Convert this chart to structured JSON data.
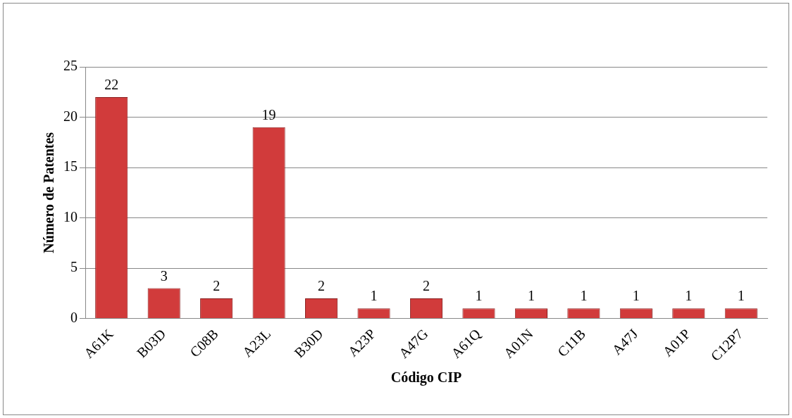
{
  "chart_data": {
    "type": "bar",
    "xlabel": "Código CIP",
    "ylabel": "Número de Patentes",
    "categories": [
      "A61K",
      "B03D",
      "C08B",
      "A23L",
      "B30D",
      "A23P",
      "A47G",
      "A61Q",
      "A01N",
      "C11B",
      "A47J",
      "A01P",
      "C12P7"
    ],
    "values": [
      22,
      3,
      2,
      19,
      2,
      1,
      2,
      1,
      1,
      1,
      1,
      1,
      1
    ],
    "color": "#d13b3b",
    "ylim": [
      0,
      25
    ],
    "yticks": [
      0,
      5,
      10,
      15,
      20,
      25
    ],
    "grid": "y",
    "data_labels": true,
    "legend": false
  }
}
